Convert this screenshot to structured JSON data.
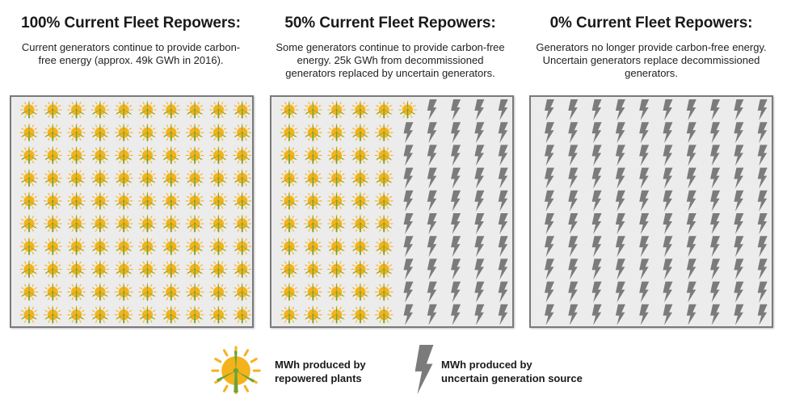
{
  "panels": [
    {
      "title": "100% Current Fleet Repowers:",
      "description_lines": [
        "Current generators continue to provide carbon-",
        "free energy (approx. 49k GWh in 2016)."
      ],
      "repowered_count": 100,
      "total_count": 100
    },
    {
      "title": "50% Current Fleet Repowers:",
      "description_lines": [
        "Some generators continue to provide carbon-free",
        "energy. 25k GWh from decommissioned",
        "generators replaced by uncertain generators."
      ],
      "repowered_count": 51,
      "total_count": 100
    },
    {
      "title": "0% Current Fleet Repowers:",
      "description_lines": [
        "Generators no longer provide carbon-free energy.",
        "Uncertain generators replace decommissioned",
        "generators."
      ],
      "repowered_count": 0,
      "total_count": 100
    }
  ],
  "legend": {
    "repowered": {
      "icon": "sun-wind-turbine-icon",
      "lines": [
        "MWh produced by",
        "repowered plants"
      ]
    },
    "uncertain": {
      "icon": "lightning-bolt-icon",
      "lines": [
        "MWh produced by",
        "uncertain generation source"
      ]
    }
  },
  "colors": {
    "sun": "#f5b21b",
    "sun_rays": "#f5b21b",
    "turbine": "#6aa535",
    "bolt": "#7b7b7b",
    "panel_bg": "#ececec",
    "panel_border": "#7a7a7a"
  }
}
